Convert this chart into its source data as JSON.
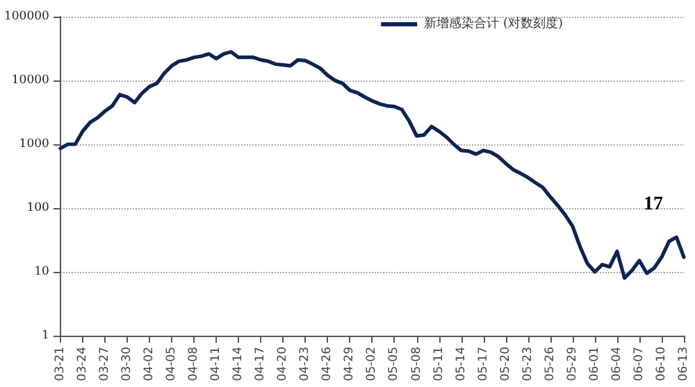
{
  "chart_data": {
    "type": "line",
    "categories": [
      "03-21",
      null,
      null,
      "03-24",
      null,
      null,
      "03-27",
      null,
      null,
      "03-30",
      null,
      null,
      "04-02",
      null,
      null,
      "04-05",
      null,
      null,
      "04-08",
      null,
      null,
      "04-11",
      null,
      null,
      "04-14",
      null,
      null,
      "04-17",
      null,
      null,
      "04-20",
      null,
      null,
      "04-23",
      null,
      null,
      "04-26",
      null,
      null,
      "04-29",
      null,
      null,
      "05-02",
      null,
      null,
      "05-05",
      null,
      null,
      "05-08",
      null,
      null,
      "05-11",
      null,
      null,
      "05-14",
      null,
      null,
      "05-17",
      null,
      null,
      "05-20",
      null,
      null,
      "05-23",
      null,
      null,
      "05-26",
      null,
      null,
      "05-29",
      null,
      null,
      "06-01",
      null,
      null,
      "06-04",
      null,
      null,
      "06-07",
      null,
      null,
      "06-10",
      null,
      null,
      "06-13"
    ],
    "series": [
      {
        "name": "新增感染合计 (对数刻度)",
        "color": "#0d2452",
        "values": [
          860,
          1000,
          1000,
          1600,
          2200,
          2600,
          3300,
          4000,
          6000,
          5500,
          4500,
          6300,
          8000,
          9000,
          13000,
          17000,
          20000,
          21000,
          23000,
          24000,
          26000,
          22000,
          26000,
          28000,
          23000,
          23000,
          23000,
          21000,
          20000,
          18000,
          17500,
          17000,
          21000,
          20500,
          18000,
          15500,
          12000,
          10000,
          9000,
          7000,
          6400,
          5500,
          4800,
          4300,
          4000,
          3900,
          3500,
          2300,
          1350,
          1400,
          1900,
          1600,
          1300,
          1000,
          800,
          780,
          700,
          800,
          750,
          640,
          500,
          400,
          350,
          300,
          250,
          210,
          150,
          110,
          78,
          52,
          25,
          13.5,
          10,
          13,
          12,
          21,
          8,
          10.5,
          15,
          9.5,
          11.5,
          17,
          30,
          35,
          17
        ]
      }
    ],
    "ylim": [
      1,
      100000
    ],
    "yticks": [
      1,
      10,
      100,
      1000,
      10000,
      100000
    ],
    "log": true,
    "grid": "y",
    "legend": "top right",
    "marker": "none",
    "line_style": "solid",
    "annotations": [
      {
        "text": "17",
        "x": "06-13",
        "y": 17
      }
    ]
  }
}
